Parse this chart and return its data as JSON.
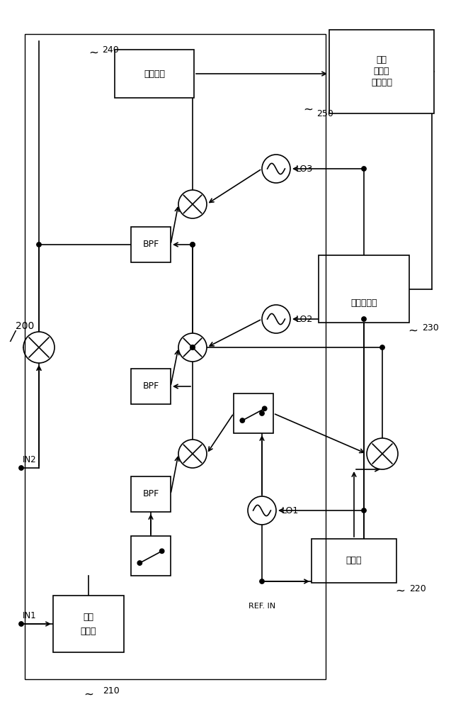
{
  "bg_color": "#ffffff",
  "box_attenuator_l1": "可变",
  "box_attenuator_l2": "衰减器",
  "box_preselector": "预选器",
  "box_sweep_l1": "扫描发生器",
  "box_digital_if": "数字中频",
  "box_display_l1": "显示",
  "box_display_l2": "和用户",
  "box_display_l3": "界面接口",
  "BPF": "BPF",
  "LO1": "LO1",
  "LO2": "LO2",
  "LO3": "LO3",
  "IN1": "IN1",
  "IN2": "IN2",
  "REF_IN": "REF. IN",
  "label_200": "200",
  "label_210": "210",
  "label_220": "220",
  "label_230": "230",
  "label_240": "240",
  "label_250": "250"
}
